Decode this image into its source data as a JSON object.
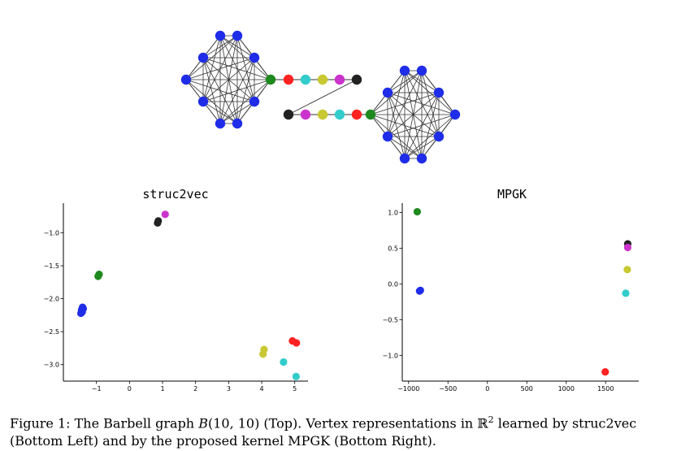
{
  "graph": {
    "name": "Barbell graph B(10,10)",
    "clique_color": "#1f2de8",
    "edge_color": "#333333",
    "path_colors": [
      "#1e8a1e",
      "#ff2222",
      "#33cccc",
      "#c8c832",
      "#cc33cc",
      "#222222"
    ]
  },
  "chart_data": [
    {
      "type": "scatter",
      "title": "struc2vec",
      "xlabel": "",
      "ylabel": "",
      "xlim": [
        -2.0,
        5.4
      ],
      "ylim": [
        -3.25,
        -0.55
      ],
      "xticks": [
        -1,
        0,
        1,
        2,
        3,
        4,
        5
      ],
      "xtick_labels": [
        "−1",
        "0",
        "1",
        "2",
        "3",
        "4",
        "5"
      ],
      "yticks": [
        -1.0,
        -1.5,
        -2.0,
        -2.5,
        -3.0
      ],
      "ytick_labels": [
        "−1.0",
        "−1.5",
        "−2.0",
        "−2.5",
        "−3.0"
      ],
      "points": [
        {
          "x": -1.42,
          "y": -2.13,
          "color": "#1f2de8"
        },
        {
          "x": -1.45,
          "y": -2.17,
          "color": "#1f2de8"
        },
        {
          "x": -1.43,
          "y": -2.2,
          "color": "#1f2de8"
        },
        {
          "x": -1.47,
          "y": -2.22,
          "color": "#1f2de8"
        },
        {
          "x": -1.4,
          "y": -2.15,
          "color": "#1f2de8"
        },
        {
          "x": -0.92,
          "y": -1.63,
          "color": "#1e8a1e"
        },
        {
          "x": -0.95,
          "y": -1.66,
          "color": "#1e8a1e"
        },
        {
          "x": 0.87,
          "y": -0.82,
          "color": "#222222"
        },
        {
          "x": 0.85,
          "y": -0.85,
          "color": "#222222"
        },
        {
          "x": 1.08,
          "y": -0.72,
          "color": "#cc33cc"
        },
        {
          "x": 4.07,
          "y": -2.77,
          "color": "#c8c832"
        },
        {
          "x": 4.04,
          "y": -2.84,
          "color": "#c8c832"
        },
        {
          "x": 4.66,
          "y": -2.96,
          "color": "#33cccc"
        },
        {
          "x": 5.04,
          "y": -3.18,
          "color": "#33cccc"
        },
        {
          "x": 4.93,
          "y": -2.64,
          "color": "#ff2222"
        },
        {
          "x": 5.05,
          "y": -2.67,
          "color": "#ff2222"
        }
      ]
    },
    {
      "type": "scatter",
      "title": "MPGK",
      "xlabel": "",
      "ylabel": "",
      "xlim": [
        -1080,
        1920
      ],
      "ylim": [
        -1.36,
        1.13
      ],
      "xticks": [
        -1000,
        -500,
        0,
        500,
        1000,
        1500
      ],
      "xtick_labels": [
        "−1000",
        "−500",
        "0",
        "500",
        "1000",
        "1500"
      ],
      "yticks": [
        1.0,
        0.5,
        0.0,
        -0.5,
        -1.0
      ],
      "ytick_labels": [
        "1.0",
        "0.5",
        "0.0",
        "−0.5",
        "−1.0"
      ],
      "points": [
        {
          "x": -890,
          "y": 1.01,
          "color": "#1e8a1e"
        },
        {
          "x": -850,
          "y": -0.09,
          "color": "#1f2de8"
        },
        {
          "x": -860,
          "y": -0.1,
          "color": "#1f2de8"
        },
        {
          "x": 1780,
          "y": 0.56,
          "color": "#222222"
        },
        {
          "x": 1780,
          "y": 0.51,
          "color": "#cc33cc"
        },
        {
          "x": 1775,
          "y": 0.2,
          "color": "#c8c832"
        },
        {
          "x": 1755,
          "y": -0.13,
          "color": "#33cccc"
        },
        {
          "x": 1495,
          "y": -1.23,
          "color": "#ff2222"
        }
      ]
    }
  ],
  "caption": {
    "line1_prefix": "Figure 1: The Barbell graph ",
    "line1_math_B": "B",
    "line1_math_args": "(10, 10)",
    "line1_mid": " (Top). Vertex representations in ",
    "line1_R": "ℝ",
    "line1_R_exp": "2",
    "line1_suffix": " learned by struc2vec",
    "line2": "(Bottom Left) and by the proposed kernel MPGK (Bottom Right)."
  }
}
